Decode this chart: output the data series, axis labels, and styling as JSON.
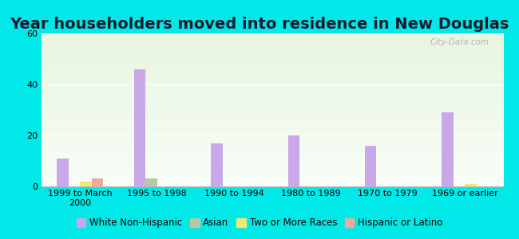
{
  "title": "Year householders moved into residence in New Douglas",
  "categories": [
    "1999 to March\n2000",
    "1995 to 1998",
    "1990 to 1994",
    "1980 to 1989",
    "1970 to 1979",
    "1969 or earlier"
  ],
  "series": {
    "White Non-Hispanic": [
      11,
      46,
      17,
      20,
      16,
      29
    ],
    "Asian": [
      0,
      3,
      0,
      0,
      0,
      0
    ],
    "Two or More Races": [
      2,
      0,
      0,
      0,
      0,
      1
    ],
    "Hispanic or Latino": [
      3,
      0,
      0,
      0,
      0,
      0
    ]
  },
  "colors": {
    "White Non-Hispanic": "#c8a8e8",
    "Asian": "#b8c8a0",
    "Two or More Races": "#f0e870",
    "Hispanic or Latino": "#f0a898"
  },
  "bar_width": 0.15,
  "ylim": [
    0,
    60
  ],
  "yticks": [
    0,
    20,
    40,
    60
  ],
  "background_color": "#00e8e8",
  "watermark": "City-Data.com",
  "title_fontsize": 14,
  "legend_fontsize": 8.5,
  "tick_fontsize": 8
}
